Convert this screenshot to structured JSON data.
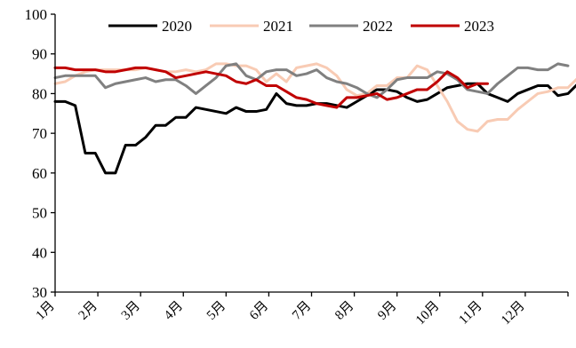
{
  "chart_data": {
    "type": "line",
    "title": "",
    "xlabel": "",
    "ylabel": "",
    "ylim": [
      30,
      100
    ],
    "yticks": [
      30,
      40,
      50,
      60,
      70,
      80,
      90,
      100
    ],
    "xtick_labels": [
      "1月",
      "2月",
      "3月",
      "4月",
      "5月",
      "6月",
      "7月",
      "8月",
      "9月",
      "10月",
      "11月",
      "12月"
    ],
    "x_unit": "week",
    "x_range": [
      1,
      52
    ],
    "legend_position": "top",
    "grid": false,
    "series": [
      {
        "name": "2020",
        "color": "#000000",
        "values": [
          78,
          78,
          77,
          65,
          65,
          60,
          60,
          67,
          67,
          69,
          72,
          72,
          74,
          74,
          76.5,
          76,
          75.5,
          75,
          76.5,
          75.5,
          75.5,
          76,
          80,
          77.5,
          77,
          77,
          77.5,
          77.5,
          77,
          76.5,
          78,
          79.5,
          81,
          81,
          80.5,
          79,
          78,
          78.5,
          80,
          81.5,
          82,
          82.5,
          82.5,
          80,
          79,
          78,
          80,
          81,
          82,
          82,
          79.5,
          80,
          82.5
        ]
      },
      {
        "name": "2021",
        "color": "#f8cbb4",
        "values": [
          82.5,
          83,
          84.5,
          85.5,
          86,
          86,
          86,
          86,
          86,
          86.5,
          86,
          85.5,
          85.5,
          86,
          85.5,
          86,
          87.5,
          87.5,
          87,
          87,
          86,
          83,
          85,
          83,
          86.5,
          87,
          87.5,
          86.5,
          84.5,
          81,
          79.5,
          80,
          82,
          82,
          84,
          84,
          87,
          86,
          82,
          78,
          73,
          71,
          70.5,
          73,
          73.5,
          73.5,
          76,
          78,
          80,
          80.5,
          81.5,
          81.5,
          84
        ]
      },
      {
        "name": "2022",
        "color": "#808080",
        "values": [
          84,
          84.5,
          84.5,
          84.5,
          84.5,
          81.5,
          82.5,
          83,
          83.5,
          84,
          83,
          83.5,
          83.5,
          82,
          80,
          82,
          84,
          87,
          87.5,
          84.5,
          83.5,
          85.5,
          86,
          86,
          84.5,
          85,
          86,
          84,
          83,
          82.5,
          81.5,
          80,
          79,
          81,
          83.5,
          84,
          84,
          84,
          85.5,
          85,
          83.5,
          81,
          80.5,
          80,
          82.5,
          84.5,
          86.5,
          86.5,
          86,
          86,
          87.5,
          87
        ]
      },
      {
        "name": "2023",
        "color": "#c00000",
        "values": [
          86.5,
          86.5,
          86,
          86,
          86,
          85.5,
          85.5,
          86,
          86.5,
          86.5,
          86,
          85.5,
          84,
          84.5,
          85,
          85.5,
          85,
          84.5,
          83,
          82.5,
          83.5,
          82,
          82,
          80.5,
          79,
          78.5,
          77.5,
          77,
          76.5,
          79,
          79,
          79.5,
          80,
          78.5,
          79,
          80,
          81,
          81,
          83,
          85.5,
          84,
          81.5,
          82.5,
          82.5
        ]
      }
    ]
  }
}
